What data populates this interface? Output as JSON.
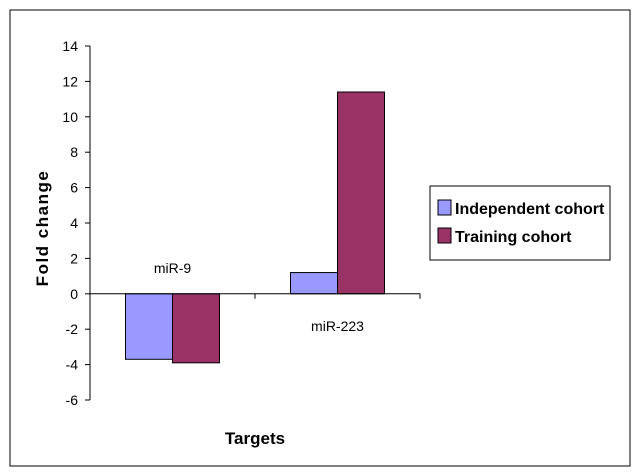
{
  "chart_data": {
    "type": "bar",
    "categories": [
      "miR-9",
      "miR-223"
    ],
    "series": [
      {
        "name": "Independent cohort",
        "values": [
          -3.7,
          1.2
        ],
        "color": "#9999ff"
      },
      {
        "name": "Training cohort",
        "values": [
          -3.9,
          11.4
        ],
        "color": "#993366"
      }
    ],
    "xlabel": "Targets",
    "ylabel": "Fold change",
    "ylim": [
      -6,
      14
    ],
    "yticks": [
      -6,
      -4,
      -2,
      0,
      2,
      4,
      6,
      8,
      10,
      12,
      14
    ],
    "legend_position": "right",
    "grid": false
  }
}
